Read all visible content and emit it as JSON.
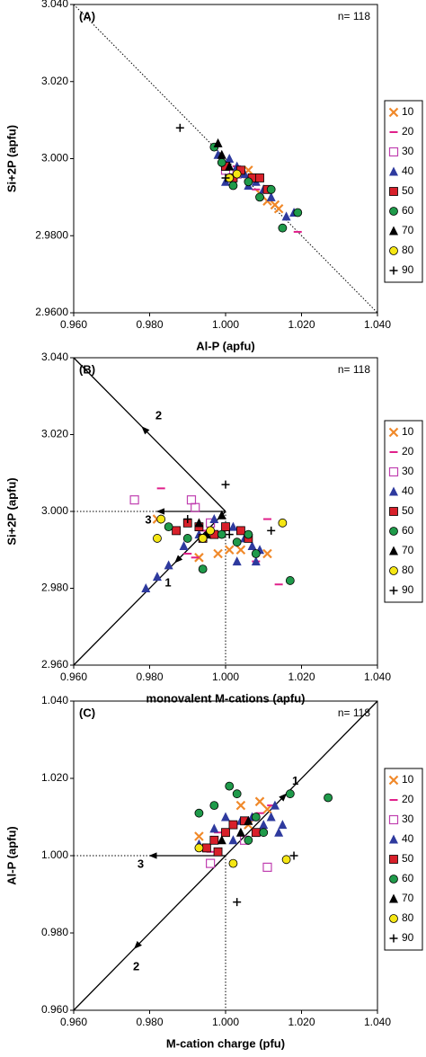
{
  "chart_data": [
    {
      "type": "scatter",
      "panel_label": "(A)",
      "n_label": "n= 118",
      "x_label": "Al-P (apfu)",
      "y_label": "Si+2P (apfu)",
      "xlim": [
        0.96,
        1.04
      ],
      "ylim": [
        2.96,
        3.04
      ],
      "xticks": [
        {
          "value": 0.96,
          "label": "0.960"
        },
        {
          "value": 0.98,
          "label": "0.980"
        },
        {
          "value": 1.0,
          "label": "1.000"
        },
        {
          "value": 1.02,
          "label": "1.020"
        },
        {
          "value": 1.04,
          "label": "1.040"
        }
      ],
      "yticks": [
        {
          "value": 2.96,
          "label": "2.9600"
        },
        {
          "value": 2.98,
          "label": "2.9800"
        },
        {
          "value": 3.0,
          "label": "3.000"
        },
        {
          "value": 3.02,
          "label": "3.020"
        },
        {
          "value": 3.04,
          "label": "3.040"
        }
      ],
      "guides": "A",
      "annotations": [],
      "series": [
        {
          "name": "10",
          "color": "#f0892a",
          "marker": "x",
          "x": [
            1.006,
            1.009,
            1.011,
            1.013,
            1.014,
            1.004
          ],
          "values": [
            2.997,
            2.991,
            2.989,
            2.988,
            2.987,
            2.996
          ]
        },
        {
          "name": "20",
          "color": "#e0208a",
          "marker": "dash",
          "x": [
            1.019,
            1.008,
            1.003
          ],
          "values": [
            2.981,
            2.992,
            2.998
          ]
        },
        {
          "name": "30",
          "color": "#c040b0",
          "marker": "square-open",
          "x": [
            1.0,
            1.003
          ],
          "values": [
            2.997,
            2.996
          ]
        },
        {
          "name": "40",
          "color": "#2e3a9e",
          "marker": "triangle",
          "x": [
            0.998,
            1.001,
            1.003,
            1.005,
            1.008,
            1.01,
            1.012,
            1.016,
            1.018,
            1.0,
            1.006
          ],
          "values": [
            3.001,
            3.0,
            2.998,
            2.996,
            2.994,
            2.992,
            2.99,
            2.985,
            2.986,
            2.994,
            2.993
          ]
        },
        {
          "name": "50",
          "color": "#d8202a",
          "marker": "square",
          "x": [
            1.0,
            1.004,
            1.007,
            1.009,
            1.011,
            1.002
          ],
          "values": [
            2.998,
            2.997,
            2.995,
            2.995,
            2.992,
            2.995
          ]
        },
        {
          "name": "60",
          "color": "#1f9a4a",
          "marker": "circle",
          "x": [
            0.997,
            0.999,
            1.002,
            1.006,
            1.012,
            1.015,
            1.019,
            1.009
          ],
          "values": [
            3.003,
            2.999,
            2.993,
            2.994,
            2.992,
            2.982,
            2.986,
            2.99
          ]
        },
        {
          "name": "70",
          "color": "#000000",
          "marker": "triangle",
          "x": [
            0.998,
            0.999,
            1.001
          ],
          "values": [
            3.004,
            3.001,
            2.998
          ]
        },
        {
          "name": "80",
          "color": "#f5e614",
          "marker": "circle",
          "x": [
            1.001,
            1.003
          ],
          "values": [
            2.995,
            2.996
          ]
        },
        {
          "name": "90",
          "color": "#000000",
          "marker": "plus",
          "x": [
            0.988,
            1.0
          ],
          "values": [
            3.008,
            2.995
          ]
        }
      ]
    },
    {
      "type": "scatter",
      "panel_label": "(B)",
      "n_label": "n= 118",
      "x_label": "monovalent M-cations (apfu)",
      "y_label": "Si+2P (apfu)",
      "xlim": [
        0.96,
        1.04
      ],
      "ylim": [
        2.96,
        3.04
      ],
      "xticks": [
        {
          "value": 0.96,
          "label": "0.960"
        },
        {
          "value": 0.98,
          "label": "0.980"
        },
        {
          "value": 1.0,
          "label": "1.000"
        },
        {
          "value": 1.02,
          "label": "1.020"
        },
        {
          "value": 1.04,
          "label": "1.040"
        }
      ],
      "yticks": [
        {
          "value": 2.96,
          "label": "2.960"
        },
        {
          "value": 2.98,
          "label": "2.980"
        },
        {
          "value": 3.0,
          "label": "3.000"
        },
        {
          "value": 3.02,
          "label": "3.020"
        },
        {
          "value": 3.04,
          "label": "3.040"
        }
      ],
      "guides": "B",
      "annotations": [
        "1",
        "2",
        "3"
      ],
      "series": [
        {
          "name": "10",
          "color": "#f0892a",
          "marker": "x",
          "x": [
            0.982,
            0.993,
            0.998,
            1.001,
            1.004,
            1.011
          ],
          "values": [
            2.998,
            2.988,
            2.989,
            2.99,
            2.99,
            2.989
          ]
        },
        {
          "name": "20",
          "color": "#e0208a",
          "marker": "dash",
          "x": [
            0.983,
            0.992,
            0.994,
            1.011,
            1.014,
            0.99,
            1.008
          ],
          "values": [
            3.006,
            2.988,
            2.995,
            2.998,
            2.981,
            2.989,
            2.987
          ]
        },
        {
          "name": "30",
          "color": "#c040b0",
          "marker": "square-open",
          "x": [
            0.976,
            0.991,
            0.992,
            0.996
          ],
          "values": [
            3.003,
            3.003,
            3.001,
            2.997
          ]
        },
        {
          "name": "40",
          "color": "#2e3a9e",
          "marker": "triangle",
          "x": [
            0.979,
            0.982,
            0.985,
            0.989,
            0.993,
            0.997,
            1.002,
            1.005,
            1.007,
            1.009,
            1.003,
            1.008
          ],
          "values": [
            2.98,
            2.983,
            2.986,
            2.991,
            2.994,
            2.998,
            2.996,
            2.993,
            2.991,
            2.99,
            2.987,
            2.987
          ]
        },
        {
          "name": "50",
          "color": "#d8202a",
          "marker": "square",
          "x": [
            0.987,
            0.99,
            0.993,
            0.997,
            1.0,
            1.004,
            1.006,
            0.994
          ],
          "values": [
            2.995,
            2.997,
            2.996,
            2.994,
            2.996,
            2.995,
            2.993,
            2.993
          ]
        },
        {
          "name": "60",
          "color": "#1f9a4a",
          "marker": "circle",
          "x": [
            0.985,
            0.99,
            0.994,
            0.999,
            1.003,
            1.006,
            1.008,
            1.017
          ],
          "values": [
            2.996,
            2.993,
            2.985,
            2.994,
            2.992,
            2.994,
            2.989,
            2.982
          ]
        },
        {
          "name": "70",
          "color": "#000000",
          "marker": "triangle",
          "x": [
            0.993,
            0.995,
            0.999
          ],
          "values": [
            2.997,
            2.994,
            2.999
          ]
        },
        {
          "name": "80",
          "color": "#f5e614",
          "marker": "circle",
          "x": [
            0.982,
            0.983,
            0.996,
            0.994,
            1.015
          ],
          "values": [
            2.993,
            2.998,
            2.995,
            2.993,
            2.997
          ]
        },
        {
          "name": "90",
          "color": "#000000",
          "marker": "plus",
          "x": [
            0.99,
            1.0,
            1.012,
            1.001
          ],
          "values": [
            2.998,
            3.007,
            2.995,
            2.994
          ]
        }
      ]
    },
    {
      "type": "scatter",
      "panel_label": "(C)",
      "n_label": "n= 118",
      "x_label": "M-cation charge (pfu)",
      "y_label": "Al-P (apfu)",
      "xlim": [
        0.96,
        1.04
      ],
      "ylim": [
        0.96,
        1.04
      ],
      "xticks": [
        {
          "value": 0.96,
          "label": "0.960"
        },
        {
          "value": 0.98,
          "label": "0.980"
        },
        {
          "value": 1.0,
          "label": "1.000"
        },
        {
          "value": 1.02,
          "label": "1.020"
        },
        {
          "value": 1.04,
          "label": "1.040"
        }
      ],
      "yticks": [
        {
          "value": 0.96,
          "label": "0.960"
        },
        {
          "value": 0.98,
          "label": "0.980"
        },
        {
          "value": 1.0,
          "label": "1.000"
        },
        {
          "value": 1.02,
          "label": "1.020"
        },
        {
          "value": 1.04,
          "label": "1.040"
        }
      ],
      "guides": "C",
      "annotations": [
        "1",
        "2",
        "3"
      ],
      "series": [
        {
          "name": "10",
          "color": "#f0892a",
          "marker": "x",
          "x": [
            0.993,
            1.004,
            1.009,
            1.011,
            1.006
          ],
          "values": [
            1.005,
            1.013,
            1.014,
            1.012,
            1.008
          ]
        },
        {
          "name": "20",
          "color": "#e0208a",
          "marker": "dash",
          "x": [
            0.996,
            0.998,
            1.009,
            1.012
          ],
          "values": [
            1.001,
            1.006,
            1.011,
            1.013
          ]
        },
        {
          "name": "30",
          "color": "#c040b0",
          "marker": "square-open",
          "x": [
            0.996,
            1.011,
            1.005
          ],
          "values": [
            0.998,
            0.997,
            1.004
          ]
        },
        {
          "name": "40",
          "color": "#2e3a9e",
          "marker": "triangle",
          "x": [
            0.993,
            0.997,
            1.0,
            1.004,
            1.007,
            1.01,
            1.012,
            1.013,
            1.014,
            1.015,
            1.002
          ],
          "values": [
            1.003,
            1.007,
            1.01,
            1.009,
            1.01,
            1.008,
            1.01,
            1.013,
            1.006,
            1.008,
            1.004
          ]
        },
        {
          "name": "50",
          "color": "#d8202a",
          "marker": "square",
          "x": [
            0.995,
            0.997,
            1.0,
            1.002,
            1.005,
            1.008,
            0.998
          ],
          "values": [
            1.002,
            1.004,
            1.006,
            1.008,
            1.009,
            1.006,
            1.001
          ]
        },
        {
          "name": "60",
          "color": "#1f9a4a",
          "marker": "circle",
          "x": [
            0.993,
            0.997,
            1.001,
            1.003,
            1.006,
            1.008,
            1.01,
            1.017,
            1.027
          ],
          "values": [
            1.011,
            1.013,
            1.018,
            1.016,
            1.004,
            1.01,
            1.006,
            1.016,
            1.015
          ]
        },
        {
          "name": "70",
          "color": "#000000",
          "marker": "triangle",
          "x": [
            0.999,
            1.004,
            1.006
          ],
          "values": [
            1.004,
            1.006,
            1.009
          ]
        },
        {
          "name": "80",
          "color": "#f5e614",
          "marker": "circle",
          "x": [
            0.993,
            1.002,
            1.016
          ],
          "values": [
            1.002,
            0.998,
            0.999
          ]
        },
        {
          "name": "90",
          "color": "#000000",
          "marker": "plus",
          "x": [
            1.003,
            1.018
          ],
          "values": [
            0.988,
            1.0
          ]
        }
      ]
    }
  ]
}
